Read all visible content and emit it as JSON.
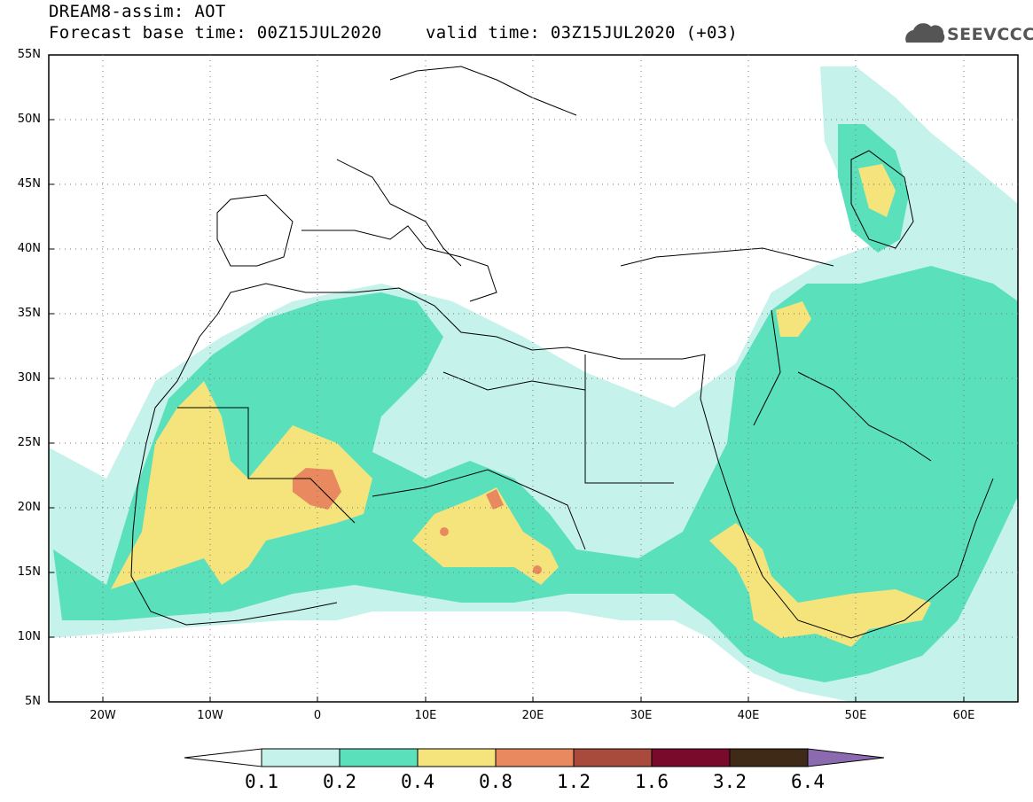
{
  "header": {
    "line1": "DREAM8-assim: AOT",
    "line2": "Forecast base time: 00Z15JUL2020",
    "valid": "valid time: 03Z15JUL2020 (+03)",
    "logo_text": "SEEVCCC"
  },
  "axes": {
    "lat_labels": [
      "55N",
      "50N",
      "45N",
      "40N",
      "35N",
      "30N",
      "25N",
      "20N",
      "15N",
      "10N",
      "5N"
    ],
    "lon_labels": [
      "20W",
      "10W",
      "0",
      "10E",
      "20E",
      "30E",
      "40E",
      "50E",
      "60E"
    ]
  },
  "colorbar": {
    "labels": [
      "0.1",
      "0.2",
      "0.4",
      "0.8",
      "1.2",
      "1.6",
      "3.2",
      "6.4"
    ],
    "colors": [
      "#ffffff",
      "#c5f2ea",
      "#5be0bc",
      "#f5e47c",
      "#e8895f",
      "#a84a3c",
      "#7a0a2c",
      "#3e2a16",
      "#8c6ab0"
    ]
  },
  "legend_colors": {
    "c1": "#c5f2ea",
    "c2": "#5be0bc",
    "c3": "#f5e47c",
    "c4": "#e8895f"
  }
}
